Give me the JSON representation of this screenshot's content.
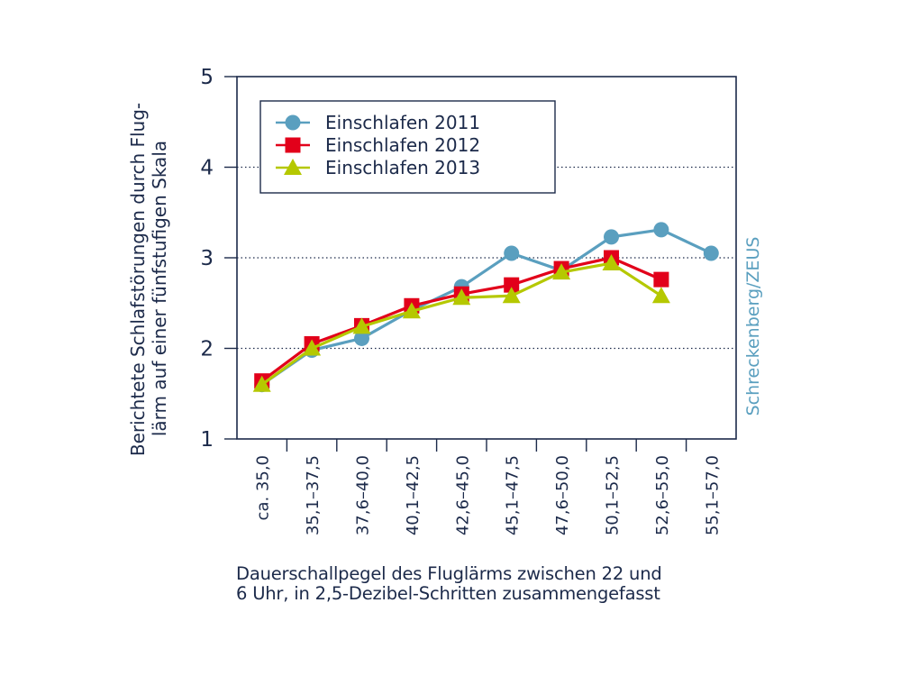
{
  "chart_data": {
    "type": "line",
    "title": "",
    "ylabel": "Berichtete Schlafstörungen durch Flug-lärm auf einer fünfstufigen Skala",
    "ylabel_lines": [
      "Berichtete Schlafstörungen durch Flug-",
      "lärm auf einer fünfstufigen Skala"
    ],
    "xlabel_lines": [
      "Dauerschallpegel des Fluglärms zwischen 22 und",
      "6 Uhr, in 2,5-Dezibel-Schritten zusammengefasst"
    ],
    "credit": "Schreckenberg/ZEUS",
    "ylim": [
      1,
      5
    ],
    "yticks": [
      "1",
      "2",
      "3",
      "4",
      "5"
    ],
    "grid": "horizontal dotted at 2, 3, 4",
    "legend_position": "top-left",
    "categories": [
      "ca. 35,0",
      "35,1–37,5",
      "37,6–40,0",
      "40,1–42,5",
      "42,6–45,0",
      "45,1–47,5",
      "47,6–50,0",
      "50,1–52,5",
      "52,6–55,0",
      "55,1–57,0"
    ],
    "series": [
      {
        "name": "Einschlafen 2011",
        "color": "#5a9fbf",
        "marker": "circle",
        "values": [
          1.6,
          1.98,
          2.11,
          2.42,
          2.68,
          3.05,
          2.86,
          3.23,
          3.31,
          3.05
        ]
      },
      {
        "name": "Einschlafen 2012",
        "color": "#e2001a",
        "marker": "square",
        "values": [
          1.64,
          2.05,
          2.25,
          2.47,
          2.6,
          2.7,
          2.88,
          3.0,
          2.76,
          null
        ]
      },
      {
        "name": "Einschlafen 2013",
        "color": "#b5c800",
        "marker": "triangle",
        "values": [
          1.6,
          2.0,
          2.24,
          2.41,
          2.56,
          2.58,
          2.84,
          2.94,
          2.58,
          null
        ]
      }
    ]
  }
}
